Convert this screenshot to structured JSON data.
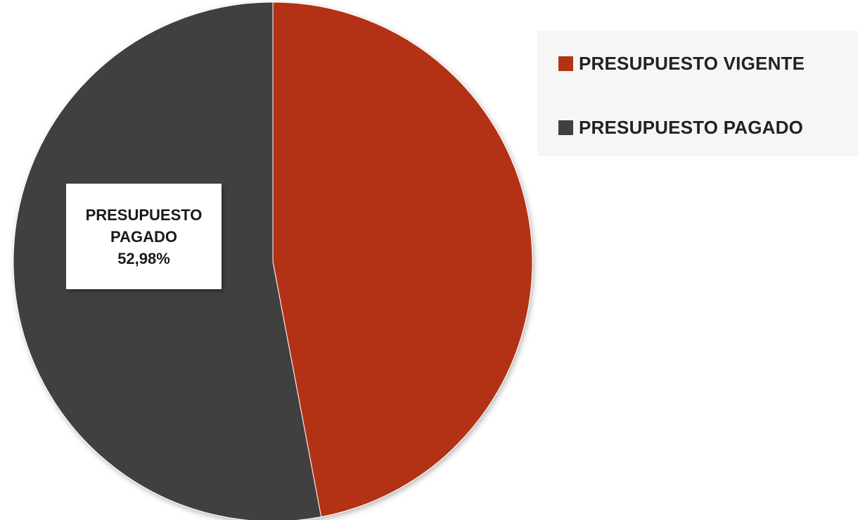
{
  "chart_data": {
    "type": "pie",
    "slices": [
      {
        "name": "PRESUPUESTO VIGENTE",
        "value": 47.02,
        "color": "#b33214"
      },
      {
        "name": "PRESUPUESTO PAGADO",
        "value": 52.98,
        "color": "#404040"
      }
    ],
    "data_labels": [
      {
        "series": "PRESUPUESTO PAGADO",
        "line1": "PRESUPUESTO",
        "line2": "PAGADO",
        "value_text": "52,98%"
      }
    ],
    "legend": {
      "placement": "top-right",
      "entries": [
        "PRESUPUESTO VIGENTE",
        "PRESUPUESTO PAGADO"
      ]
    },
    "start_angle": "12 o'clock",
    "direction": "clockwise"
  }
}
